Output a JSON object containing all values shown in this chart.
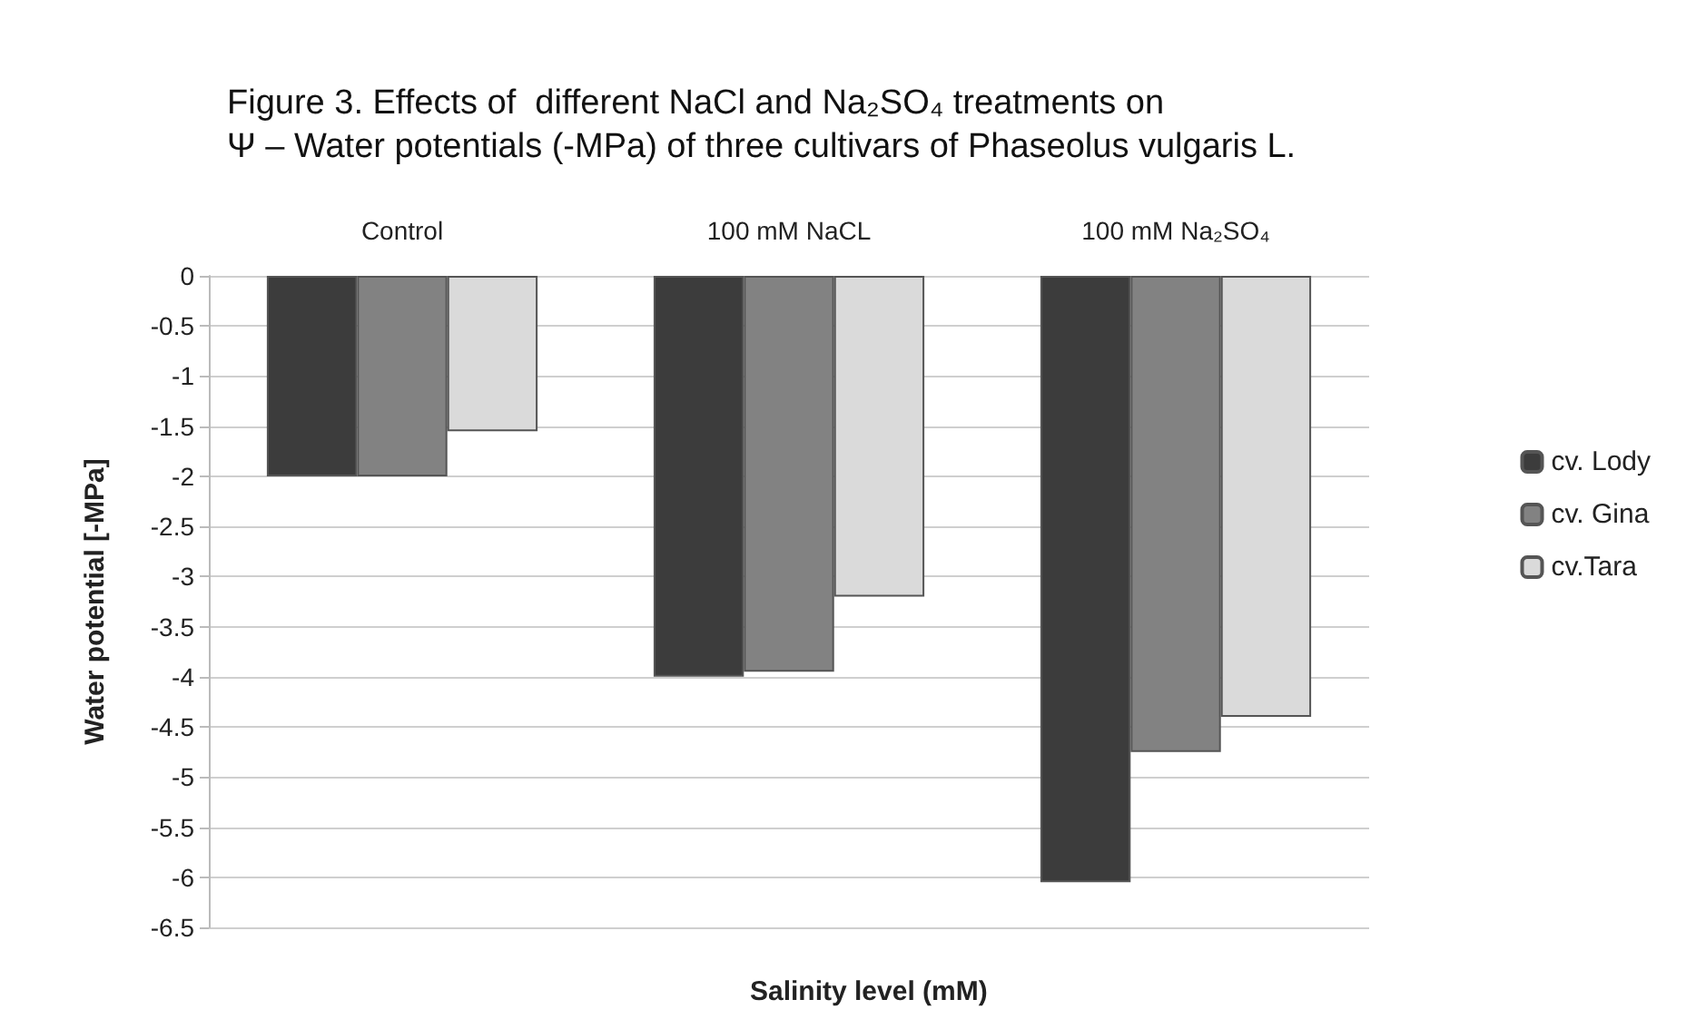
{
  "chart_data": {
    "type": "bar",
    "title": "Figure 3. Effects of  different NaCl and Na₂SO₄ treatments on\nΨ – Water potentials (-MPa) of three cultivars of Phaseolus vulgaris L.",
    "xlabel": "Salinity level (mM)",
    "ylabel": "Water potential [-MPa]",
    "categories": [
      "Control",
      "100 mM NaCL",
      "100 mM Na₂SO₄"
    ],
    "series": [
      {
        "name": "cv. Lody",
        "color": "#3c3c3c",
        "values": [
          -2.0,
          -4.0,
          -6.05
        ]
      },
      {
        "name": "cv. Gina",
        "color": "#828282",
        "values": [
          -2.0,
          -3.95,
          -4.75
        ]
      },
      {
        "name": "cv.Tara",
        "color": "#dadada",
        "values": [
          -1.55,
          -3.2,
          -4.4
        ]
      }
    ],
    "ylim": [
      -6.5,
      0
    ],
    "yticks": [
      0,
      -0.5,
      -1,
      -1.5,
      -2,
      -2.5,
      -3,
      -3.5,
      -4,
      -4.5,
      -5,
      -5.5,
      -6,
      -6.5
    ],
    "grid": "y",
    "legend": "right"
  }
}
